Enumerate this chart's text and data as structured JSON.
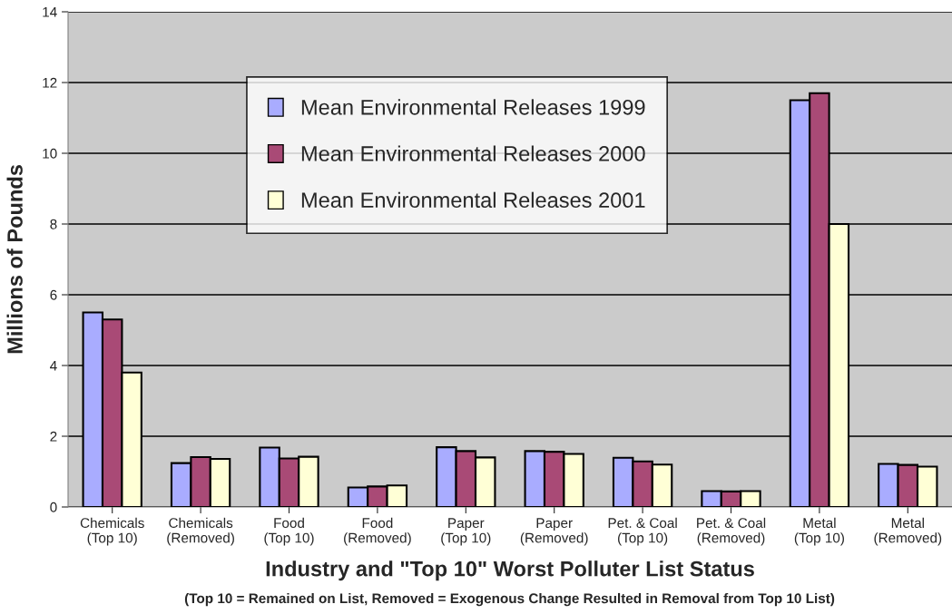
{
  "chart_data": {
    "type": "bar",
    "xlabel": "Industry and \"Top 10\" Worst Polluter List Status",
    "ylabel": "Millions of Pounds",
    "annotations": [
      "(Top 10 = Remained on List, Removed = Exogenous Change Resulted in Removal from Top 10 List)"
    ],
    "categories": [
      "Chemicals\n(Top 10)",
      "Chemicals\n(Removed)",
      "Food\n(Top 10)",
      "Food\n(Removed)",
      "Paper\n(Top 10)",
      "Paper\n(Removed)",
      "Pet. & Coal\n(Top 10)",
      "Pet. & Coal\n(Removed)",
      "Metal\n(Top 10)",
      "Metal\n(Removed)"
    ],
    "series": [
      {
        "name": "Mean Environmental Releases 1999",
        "color": "#a9acff",
        "values": [
          5.5,
          1.24,
          1.68,
          0.55,
          1.69,
          1.58,
          1.39,
          0.45,
          11.5,
          1.22
        ]
      },
      {
        "name": "Mean Environmental Releases 2000",
        "color": "#a94a76",
        "values": [
          5.3,
          1.41,
          1.37,
          0.58,
          1.58,
          1.56,
          1.29,
          0.44,
          11.7,
          1.19
        ]
      },
      {
        "name": "Mean Environmental Releases 2001",
        "color": "#ffffd6",
        "values": [
          3.8,
          1.36,
          1.42,
          0.61,
          1.4,
          1.5,
          1.2,
          0.45,
          8.0,
          1.14
        ]
      }
    ],
    "ylim": [
      0,
      14
    ],
    "yticks": [
      0,
      2,
      4,
      6,
      8,
      10,
      12,
      14
    ],
    "grid": "y",
    "legend": "top"
  }
}
